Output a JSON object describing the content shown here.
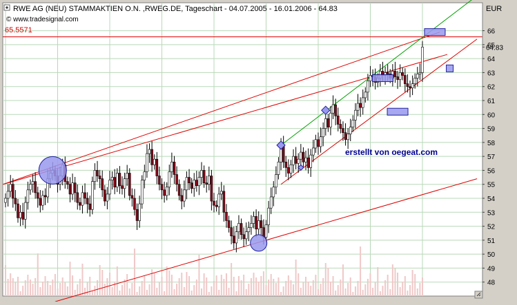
{
  "header": {
    "title": "RWE AG (NEU) STAMMAKTIEN O.N. ,RWEG.DE, Tageschart - 04.07.2005 - 16.01.2006 - 64.83",
    "source": "© www.tradesignal.com"
  },
  "colors": {
    "chart_bg": "#ffffff",
    "panel_bg": "#d4d0c8",
    "grid": "#b8d8b8",
    "candle_up": "#5a1a2a",
    "candle_down": "#8a0a1a",
    "volume": "#f0c8c8",
    "trendline_red": "#e00000",
    "trendline_green": "#00a000",
    "marker_fill": "#9999ee",
    "marker_stroke": "#2020a0",
    "annotation_text": "#000090"
  },
  "annotations": {
    "ref_price_label": "65.5571",
    "watermark": "erstellt von oegeat.com"
  },
  "chart_data": {
    "type": "candlestick",
    "title": "RWE AG (NEU) STAMMAKTIEN O.N. ,RWEG.DE, Tageschart - 04.07.2005 - 16.01.2006 - 64.83",
    "ylabel": "EUR",
    "ylim": [
      47,
      68
    ],
    "yticks": [
      48,
      49,
      50,
      51,
      52,
      53,
      54,
      55,
      56,
      57,
      58,
      59,
      60,
      61,
      62,
      63,
      64,
      65,
      66
    ],
    "last_price": 64.83,
    "reference_level": 65.5571,
    "grid": true,
    "closes": [
      54.0,
      54.5,
      55.0,
      54.0,
      53.6,
      52.6,
      53.0,
      52.5,
      53.7,
      54.6,
      55.0,
      55.2,
      54.4,
      54.0,
      53.5,
      54.2,
      54.1,
      55.4,
      55.8,
      56.0,
      55.6,
      55.0,
      55.6,
      56.4,
      55.2,
      55.0,
      54.3,
      55.1,
      54.4,
      53.7,
      53.5,
      54.4,
      54.0,
      53.6,
      53.2,
      55.2,
      56.0,
      55.6,
      55.4,
      54.6,
      53.8,
      54.3,
      55.3,
      55.5,
      54.8,
      55.8,
      54.9,
      54.7,
      55.4,
      55.8,
      54.2,
      54.0,
      53.2,
      52.4,
      53.6,
      55.3,
      55.9,
      57.2,
      57.5,
      56.4,
      56.8,
      55.6,
      55.0,
      54.6,
      54.2,
      54.8,
      55.9,
      56.6,
      55.7,
      55.0,
      54.2,
      53.8,
      54.6,
      55.5,
      55.1,
      54.7,
      55.3,
      54.9,
      55.5,
      56.0,
      55.1,
      55.0,
      55.6,
      53.8,
      53.5,
      53.4,
      54.3,
      54.5,
      53.0,
      52.4,
      51.9,
      51.3,
      50.8,
      51.6,
      52.2,
      51.4,
      51.1,
      51.6,
      51.9,
      52.2,
      52.7,
      51.8,
      52.4,
      51.9,
      51.2,
      52.1,
      53.3,
      54.1,
      54.8,
      55.7,
      56.6,
      57.8,
      56.6,
      56.2,
      55.8,
      56.4,
      57.0,
      56.5,
      56.8,
      57.3,
      56.6,
      56.9,
      56.2,
      57.1,
      57.6,
      58.2,
      57.7,
      58.4,
      59.0,
      59.7,
      59.1,
      60.1,
      60.7,
      59.9,
      59.3,
      59.0,
      58.7,
      58.2,
      58.6,
      59.1,
      59.6,
      60.3,
      60.8,
      60.5,
      61.2,
      61.6,
      62.4,
      62.8,
      62.7,
      62.3,
      62.6,
      63.1,
      62.8,
      63.0,
      62.9,
      62.6,
      63.1,
      62.7,
      62.5,
      63.0,
      62.8,
      62.2,
      62.0,
      61.9,
      62.2,
      62.6,
      62.9,
      63.0,
      64.83
    ],
    "markers": [
      {
        "date_index": 19,
        "price": 56.0,
        "shape": "circle-large"
      },
      {
        "date_index": 102,
        "price": 50.8,
        "shape": "circle"
      },
      {
        "date_index": 111,
        "price": 57.8,
        "shape": "diamond"
      },
      {
        "date_index": 119,
        "price": 56.2,
        "shape": "diamond-small"
      },
      {
        "date_index": 129,
        "price": 60.3,
        "shape": "diamond"
      },
      {
        "date_index": 152,
        "price": 62.6,
        "shape": "rect"
      },
      {
        "date_index": 158,
        "price": 60.2,
        "shape": "rect"
      },
      {
        "date_index": 173,
        "price": 65.9,
        "shape": "rect"
      },
      {
        "date_index": 179,
        "price": 63.3,
        "shape": "rect-small"
      }
    ]
  }
}
